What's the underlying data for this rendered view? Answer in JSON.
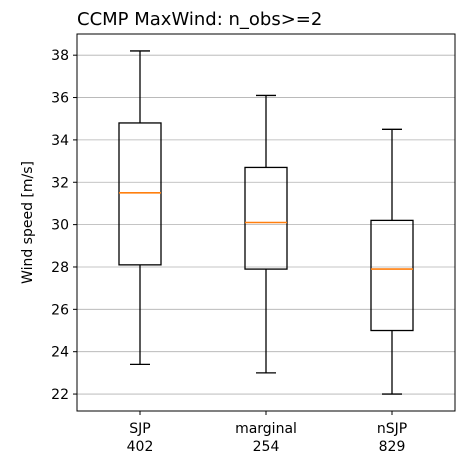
{
  "chart_data": {
    "type": "box",
    "title": "CCMP MaxWind: n_obs>=2",
    "ylabel": "Wind speed [m/s]",
    "xlabel": "",
    "ylim": [
      21.2,
      39.0
    ],
    "yticks": [
      22,
      24,
      26,
      28,
      30,
      32,
      34,
      36,
      38
    ],
    "grid": "horizontal",
    "categories": [
      {
        "label": "SJP",
        "count": "402"
      },
      {
        "label": "marginal",
        "count": "254"
      },
      {
        "label": "nSJP",
        "count": "829"
      }
    ],
    "boxes": [
      {
        "whisker_low": 23.4,
        "q1": 28.1,
        "median": 31.5,
        "q3": 34.8,
        "whisker_high": 38.2
      },
      {
        "whisker_low": 23.0,
        "q1": 27.9,
        "median": 30.1,
        "q3": 32.7,
        "whisker_high": 36.1
      },
      {
        "whisker_low": 22.0,
        "q1": 25.0,
        "median": 27.9,
        "q3": 30.2,
        "whisker_high": 34.5
      }
    ],
    "colors": {
      "box": "#000000",
      "median": "#ff7f0e",
      "grid": "#b0b0b0"
    }
  }
}
